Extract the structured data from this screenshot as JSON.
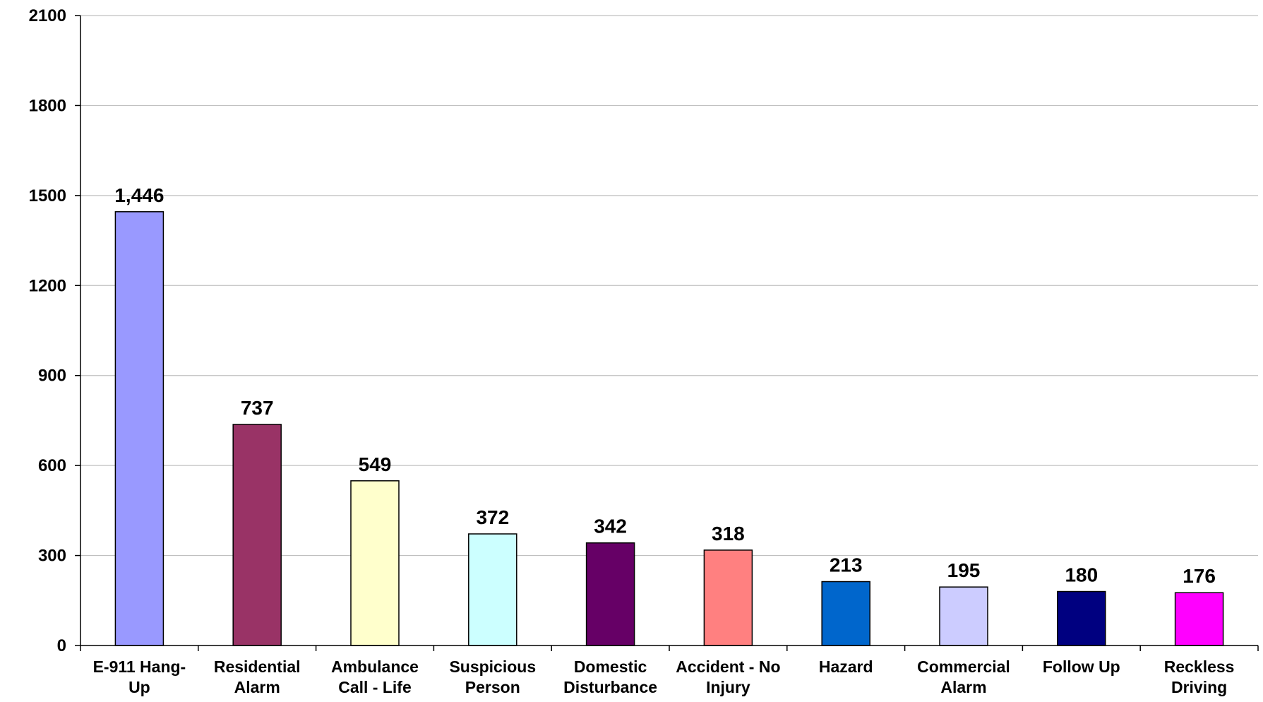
{
  "chart_data": {
    "type": "bar",
    "title": "",
    "xlabel": "",
    "ylabel": "",
    "ylim": [
      0,
      2100
    ],
    "yticks": [
      0,
      300,
      600,
      900,
      1200,
      1500,
      1800,
      2100
    ],
    "grid": true,
    "legend": "none",
    "categories": [
      [
        "E-911 Hang-",
        "Up"
      ],
      [
        "Residential",
        "Alarm"
      ],
      [
        "Ambulance",
        "Call - Life"
      ],
      [
        "Suspicious",
        "Person"
      ],
      [
        "Domestic",
        "Disturbance"
      ],
      [
        "Accident - No",
        "Injury"
      ],
      [
        "Hazard"
      ],
      [
        "Commercial",
        "Alarm"
      ],
      [
        "Follow Up"
      ],
      [
        "Reckless",
        "Driving"
      ]
    ],
    "values": [
      1446,
      737,
      549,
      372,
      342,
      318,
      213,
      195,
      180,
      176
    ],
    "value_labels": [
      "1,446",
      "737",
      "549",
      "372",
      "342",
      "318",
      "213",
      "195",
      "180",
      "176"
    ],
    "colors": [
      "#9999FF",
      "#993366",
      "#FFFFCC",
      "#CCFFFF",
      "#660066",
      "#FF8080",
      "#0066CC",
      "#CCCCFF",
      "#000080",
      "#FF00FF"
    ],
    "gridline_color": "#C0C0C0",
    "bar_border_color": "#000000"
  }
}
